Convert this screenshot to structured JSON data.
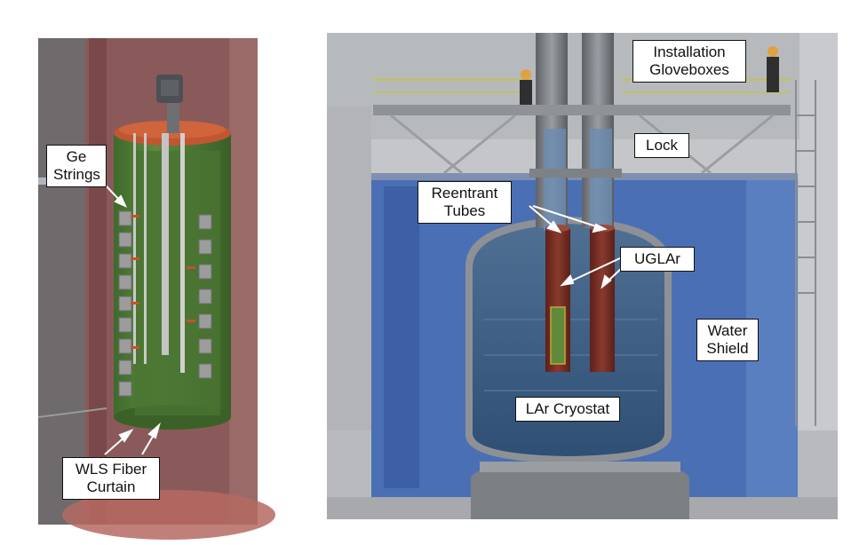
{
  "labels": {
    "ge_strings": "Ge\nStrings",
    "wls_fiber_curtain": "WLS Fiber\nCurtain",
    "installation_gloveboxes": "Installation\nGloveboxes",
    "lock": "Lock",
    "reentrant_tubes": "Reentrant\nTubes",
    "uglar": "UGLAr",
    "water_shield": "Water\nShield",
    "lar_cryostat": "LAr Cryostat"
  },
  "colors": {
    "cryostat_green": "#4e7a36",
    "flange_orange": "#c0542e",
    "water_blue": "#3f63a8",
    "argon_blue": "#3d5f86",
    "tube_red": "#7a3026",
    "steel_grey": "#8c8f93"
  }
}
